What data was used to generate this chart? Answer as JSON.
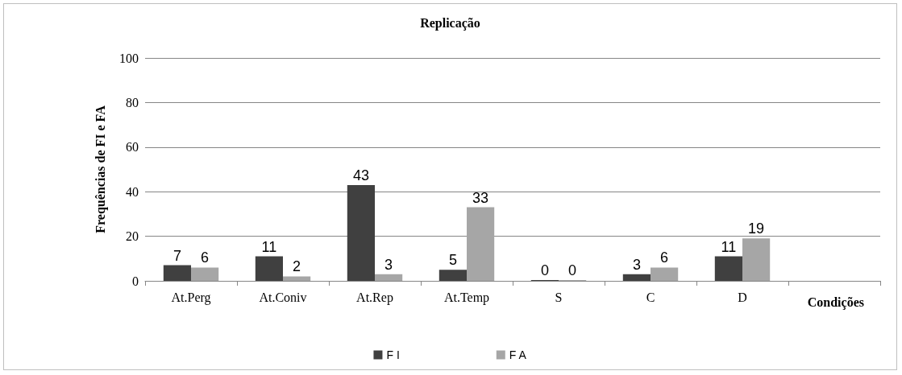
{
  "chart_data": {
    "type": "bar",
    "title": "Replicação",
    "xlabel": "Condições",
    "ylabel": "Frequências de FI e FA",
    "categories": [
      "At.Perg",
      "At.Coniv",
      "At.Rep",
      "At.Temp",
      "S",
      "C",
      "D",
      null
    ],
    "series": [
      {
        "name": "F I",
        "color": "#404040",
        "values": [
          7,
          11,
          43,
          5,
          0,
          3,
          11,
          null
        ]
      },
      {
        "name": "F A",
        "color": "#a6a6a6",
        "values": [
          6,
          2,
          3,
          33,
          0,
          6,
          19,
          null
        ]
      }
    ],
    "ylim": [
      0,
      100
    ],
    "yticks": [
      0,
      20,
      40,
      60,
      80,
      100
    ],
    "grid": "y",
    "legend": "bottom",
    "data_labels": true
  }
}
